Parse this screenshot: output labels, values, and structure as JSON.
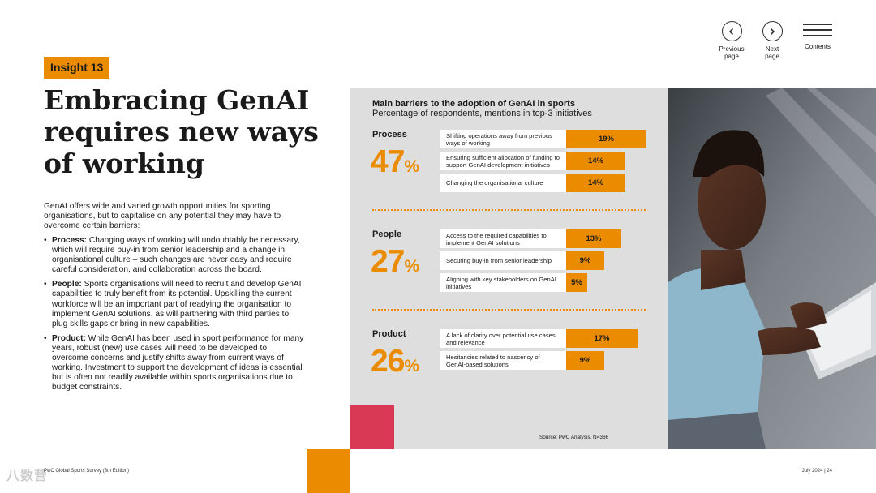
{
  "nav": {
    "previous": "Previous\npage",
    "next": "Next\npage",
    "contents": "Contents"
  },
  "badge": "Insight 13",
  "title": "Embracing GenAI requires new ways of working",
  "intro": "GenAI offers wide and varied growth opportunities for sporting organisations, but to capitalise on any potential they may have to overcome certain barriers:",
  "bullets": [
    {
      "term": "Process:",
      "text": " Changing ways of working will undoubtably be necessary, which will require buy-in from senior leadership and a change in organisational culture – such changes are never easy and require careful consideration, and collaboration across the board."
    },
    {
      "term": "People:",
      "text": " Sports organisations will need to recruit and develop GenAI capabilities to truly benefit from its potential. Upskilling the current workforce will be an important part of readying the organisation to implement GenAI solutions, as will partnering with third parties to plug skills gaps or bring in new capabilities."
    },
    {
      "term": "Product:",
      "text": " While GenAI has been used in sport performance for many years, robust (new) use cases will need to be developed to overcome concerns and justify shifts away from current ways of working. Investment to support the development of ideas is essential but is often not readily available within sports organisations due to budget constraints."
    }
  ],
  "footer": {
    "left": "PwC Global Sports Survey (8th Edition)",
    "right": "July 2024 | 24",
    "watermark": "八数营"
  },
  "colors": {
    "accent": "#eb8c00",
    "red": "#d93954",
    "panel": "#dedede"
  },
  "chart_data": {
    "type": "bar",
    "title": "Main barriers to the adoption of GenAI in sports",
    "subtitle": "Percentage of respondents, mentions in top-3 initiatives",
    "source": "Source: PwC Analysis, N=366",
    "unit": "%",
    "groups": [
      {
        "name": "Process",
        "total": "47",
        "items": [
          {
            "label": "Shifting operations away from previous ways of working",
            "value": 19
          },
          {
            "label": "Ensuring sufficient allocation of funding to support GenAI development initiatives",
            "value": 14
          },
          {
            "label": "Changing the organisational culture",
            "value": 14
          }
        ]
      },
      {
        "name": "People",
        "total": "27",
        "items": [
          {
            "label": "Access to the required capabilities to implement GenAI solutions",
            "value": 13
          },
          {
            "label": "Securing buy-in from senior leadership",
            "value": 9
          },
          {
            "label": "Aligning with key stakeholders on GenAI initiatives",
            "value": 5
          }
        ]
      },
      {
        "name": "Product",
        "total": "26",
        "items": [
          {
            "label": "A lack of clarity over potential use cases and relevance",
            "value": 17
          },
          {
            "label": "Hesitancies related to nascency of GenAI-based solutions",
            "value": 9
          }
        ]
      }
    ]
  }
}
